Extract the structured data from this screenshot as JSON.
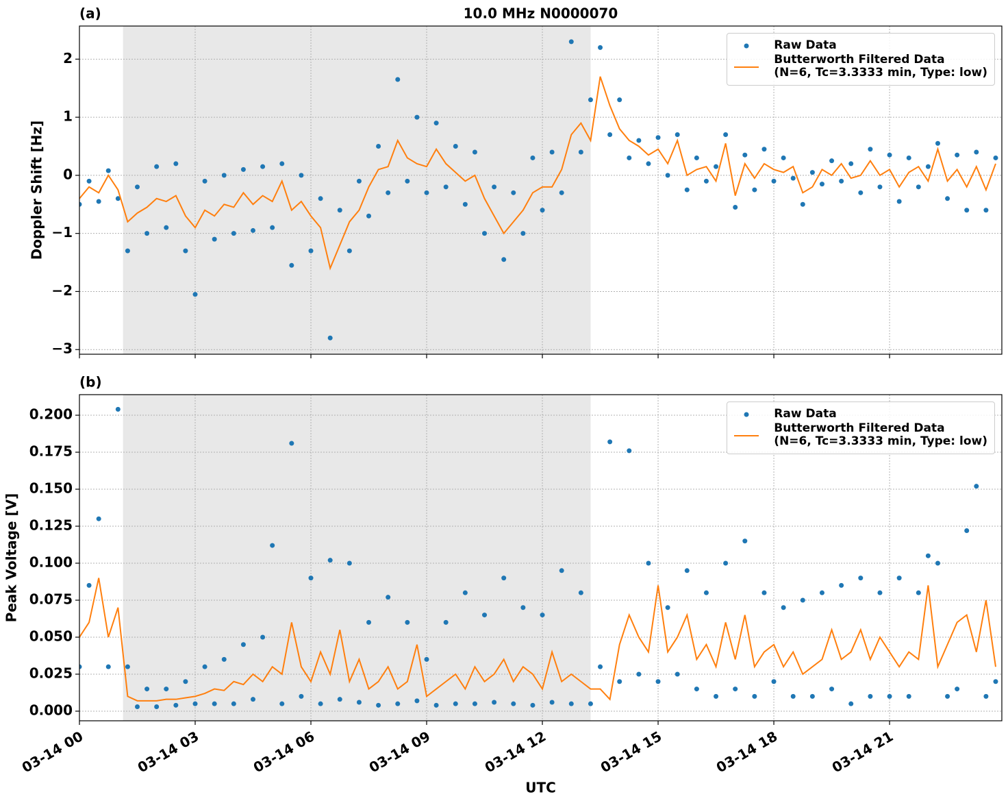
{
  "chart_data": [
    {
      "type": "scatter-line",
      "panel_label": "(a)",
      "title": "10.0 MHz N0000070",
      "y_label": "Doppler Shift [Hz]",
      "xlim": [
        0,
        23.91
      ],
      "ylim": [
        -3.08,
        2.57
      ],
      "xticks": [
        0,
        3,
        6,
        9,
        12,
        15,
        18,
        21
      ],
      "yticks": [
        {
          "value": -3,
          "label": "−3"
        },
        {
          "value": -2,
          "label": "−2"
        },
        {
          "value": -1,
          "label": "−1"
        },
        0,
        1,
        2
      ],
      "grid": true,
      "legend": "upper right",
      "shaded_span": [
        1.13,
        13.25
      ],
      "x": [
        0,
        0.25,
        0.5,
        0.75,
        1,
        1.25,
        1.5,
        1.75,
        2,
        2.25,
        2.5,
        2.75,
        3,
        3.25,
        3.5,
        3.75,
        4,
        4.25,
        4.5,
        4.75,
        5,
        5.25,
        5.5,
        5.75,
        6,
        6.25,
        6.5,
        6.75,
        7,
        7.25,
        7.5,
        7.75,
        8,
        8.25,
        8.5,
        8.75,
        9,
        9.25,
        9.5,
        9.75,
        10,
        10.25,
        10.5,
        10.75,
        11,
        11.25,
        11.5,
        11.75,
        12,
        12.25,
        12.5,
        12.75,
        13,
        13.25,
        13.5,
        13.75,
        14,
        14.25,
        14.5,
        14.75,
        15,
        15.25,
        15.5,
        15.75,
        16,
        16.25,
        16.5,
        16.75,
        17,
        17.25,
        17.5,
        17.75,
        18,
        18.25,
        18.5,
        18.75,
        19,
        19.25,
        19.5,
        19.75,
        20,
        20.25,
        20.5,
        20.75,
        21,
        21.25,
        21.5,
        21.75,
        22,
        22.25,
        22.5,
        22.75,
        23,
        23.25,
        23.5,
        23.75
      ],
      "series": [
        {
          "name": "Raw Data",
          "color": "#1f77b4",
          "style": "dots",
          "values": [
            -0.5,
            -0.1,
            -0.45,
            0.08,
            -0.4,
            -1.3,
            -0.2,
            -1.0,
            0.15,
            -0.9,
            0.2,
            -1.3,
            -2.05,
            -0.1,
            -1.1,
            0.0,
            -1.0,
            0.1,
            -0.95,
            0.15,
            -0.9,
            0.2,
            -1.55,
            0.0,
            -1.3,
            -0.4,
            -2.8,
            -0.6,
            -1.3,
            -0.1,
            -0.7,
            0.5,
            -0.3,
            1.65,
            -0.1,
            1.0,
            -0.3,
            0.9,
            -0.2,
            0.5,
            -0.5,
            0.4,
            -1.0,
            -0.2,
            -1.45,
            -0.3,
            -1.0,
            0.3,
            -0.6,
            0.4,
            -0.3,
            2.3,
            0.4,
            1.3,
            2.2,
            0.7,
            1.3,
            0.3,
            0.6,
            0.2,
            0.65,
            0.0,
            0.7,
            -0.25,
            0.3,
            -0.1,
            0.15,
            0.7,
            -0.55,
            0.35,
            -0.25,
            0.45,
            -0.1,
            0.3,
            -0.05,
            -0.5,
            0.05,
            -0.15,
            0.25,
            -0.1,
            0.2,
            -0.3,
            0.45,
            -0.2,
            0.35,
            -0.45,
            0.3,
            -0.2,
            0.15,
            0.55,
            -0.4,
            0.35,
            -0.6,
            0.4,
            -0.6,
            0.3
          ]
        },
        {
          "name": "Butterworth Filtered Data\n(N=6, Tc=3.3333 min, Type: low)",
          "color": "#ff7f0e",
          "style": "line",
          "values": [
            -0.4,
            -0.2,
            -0.3,
            0.0,
            -0.25,
            -0.8,
            -0.65,
            -0.55,
            -0.4,
            -0.45,
            -0.35,
            -0.7,
            -0.9,
            -0.6,
            -0.7,
            -0.5,
            -0.55,
            -0.3,
            -0.5,
            -0.35,
            -0.45,
            -0.1,
            -0.6,
            -0.45,
            -0.7,
            -0.9,
            -1.6,
            -1.2,
            -0.8,
            -0.6,
            -0.2,
            0.1,
            0.15,
            0.6,
            0.3,
            0.2,
            0.15,
            0.45,
            0.2,
            0.05,
            -0.1,
            0.0,
            -0.4,
            -0.7,
            -1.0,
            -0.8,
            -0.6,
            -0.3,
            -0.2,
            -0.2,
            0.1,
            0.7,
            0.9,
            0.6,
            1.7,
            1.2,
            0.8,
            0.6,
            0.5,
            0.35,
            0.45,
            0.2,
            0.6,
            0.0,
            0.1,
            0.15,
            -0.1,
            0.55,
            -0.35,
            0.2,
            -0.05,
            0.2,
            0.1,
            0.05,
            0.15,
            -0.3,
            -0.2,
            0.1,
            0.0,
            0.2,
            -0.05,
            0.0,
            0.25,
            0.0,
            0.1,
            -0.2,
            0.05,
            0.15,
            -0.1,
            0.45,
            -0.1,
            0.1,
            -0.2,
            0.15,
            -0.25,
            0.2
          ]
        }
      ]
    },
    {
      "type": "scatter-line",
      "panel_label": "(b)",
      "y_label": "Peak Voltage [V]",
      "x_label": "UTC",
      "xlim": [
        0,
        23.91
      ],
      "ylim": [
        -0.0065,
        0.2139
      ],
      "xticks": [
        {
          "value": 0,
          "label": "03-14 00"
        },
        {
          "value": 3,
          "label": "03-14 03"
        },
        {
          "value": 6,
          "label": "03-14 06"
        },
        {
          "value": 9,
          "label": "03-14 09"
        },
        {
          "value": 12,
          "label": "03-14 12"
        },
        {
          "value": 15,
          "label": "03-14 15"
        },
        {
          "value": 18,
          "label": "03-14 18"
        },
        {
          "value": 21,
          "label": "03-14 21"
        }
      ],
      "yticks": [
        {
          "value": 0,
          "label": "0.000"
        },
        0.025,
        {
          "value": 0.05,
          "label": "0.050"
        },
        0.075,
        {
          "value": 0.1,
          "label": "0.100"
        },
        0.125,
        {
          "value": 0.15,
          "label": "0.150"
        },
        0.175,
        {
          "value": 0.2,
          "label": "0.200"
        }
      ],
      "grid": true,
      "legend": "upper right",
      "shaded_span": [
        1.13,
        13.25
      ],
      "x": [
        0,
        0.25,
        0.5,
        0.75,
        1,
        1.25,
        1.5,
        1.75,
        2,
        2.25,
        2.5,
        2.75,
        3,
        3.25,
        3.5,
        3.75,
        4,
        4.25,
        4.5,
        4.75,
        5,
        5.25,
        5.5,
        5.75,
        6,
        6.25,
        6.5,
        6.75,
        7,
        7.25,
        7.5,
        7.75,
        8,
        8.25,
        8.5,
        8.75,
        9,
        9.25,
        9.5,
        9.75,
        10,
        10.25,
        10.5,
        10.75,
        11,
        11.25,
        11.5,
        11.75,
        12,
        12.25,
        12.5,
        12.75,
        13,
        13.25,
        13.5,
        13.75,
        14,
        14.25,
        14.5,
        14.75,
        15,
        15.25,
        15.5,
        15.75,
        16,
        16.25,
        16.5,
        16.75,
        17,
        17.25,
        17.5,
        17.75,
        18,
        18.25,
        18.5,
        18.75,
        19,
        19.25,
        19.5,
        19.75,
        20,
        20.25,
        20.5,
        20.75,
        21,
        21.25,
        21.5,
        21.75,
        22,
        22.25,
        22.5,
        22.75,
        23,
        23.25,
        23.5,
        23.75
      ],
      "series": [
        {
          "name": "Raw Data",
          "color": "#1f77b4",
          "style": "dots",
          "values": [
            0.03,
            0.085,
            0.13,
            0.03,
            0.204,
            0.03,
            0.003,
            0.015,
            0.003,
            0.015,
            0.004,
            0.02,
            0.005,
            0.03,
            0.005,
            0.035,
            0.005,
            0.045,
            0.008,
            0.05,
            0.112,
            0.005,
            0.181,
            0.01,
            0.09,
            0.005,
            0.102,
            0.008,
            0.1,
            0.006,
            0.06,
            0.004,
            0.077,
            0.005,
            0.06,
            0.007,
            0.035,
            0.004,
            0.06,
            0.005,
            0.08,
            0.005,
            0.065,
            0.006,
            0.09,
            0.005,
            0.07,
            0.004,
            0.065,
            0.006,
            0.095,
            0.005,
            0.08,
            0.005,
            0.03,
            0.182,
            0.02,
            0.176,
            0.025,
            0.1,
            0.02,
            0.07,
            0.025,
            0.095,
            0.015,
            0.08,
            0.01,
            0.1,
            0.015,
            0.115,
            0.01,
            0.08,
            0.02,
            0.07,
            0.01,
            0.075,
            0.01,
            0.08,
            0.015,
            0.085,
            0.005,
            0.09,
            0.01,
            0.08,
            0.01,
            0.09,
            0.01,
            0.08,
            0.105,
            0.1,
            0.01,
            0.015,
            0.122,
            0.152,
            0.01,
            0.02
          ]
        },
        {
          "name": "Butterworth Filtered Data\n(N=6, Tc=3.3333 min, Type: low)",
          "color": "#ff7f0e",
          "style": "line",
          "values": [
            0.05,
            0.06,
            0.09,
            0.05,
            0.07,
            0.01,
            0.007,
            0.007,
            0.007,
            0.008,
            0.008,
            0.009,
            0.01,
            0.012,
            0.015,
            0.014,
            0.02,
            0.018,
            0.025,
            0.02,
            0.03,
            0.025,
            0.06,
            0.03,
            0.02,
            0.04,
            0.025,
            0.055,
            0.02,
            0.035,
            0.015,
            0.02,
            0.03,
            0.015,
            0.02,
            0.045,
            0.01,
            0.015,
            0.02,
            0.025,
            0.015,
            0.03,
            0.02,
            0.025,
            0.035,
            0.02,
            0.03,
            0.025,
            0.015,
            0.04,
            0.02,
            0.025,
            0.02,
            0.015,
            0.015,
            0.008,
            0.045,
            0.065,
            0.05,
            0.04,
            0.085,
            0.04,
            0.05,
            0.065,
            0.035,
            0.045,
            0.03,
            0.06,
            0.035,
            0.065,
            0.03,
            0.04,
            0.045,
            0.03,
            0.04,
            0.025,
            0.03,
            0.035,
            0.055,
            0.035,
            0.04,
            0.055,
            0.035,
            0.05,
            0.04,
            0.03,
            0.04,
            0.035,
            0.085,
            0.03,
            0.045,
            0.06,
            0.065,
            0.04,
            0.075,
            0.03
          ]
        }
      ]
    }
  ]
}
